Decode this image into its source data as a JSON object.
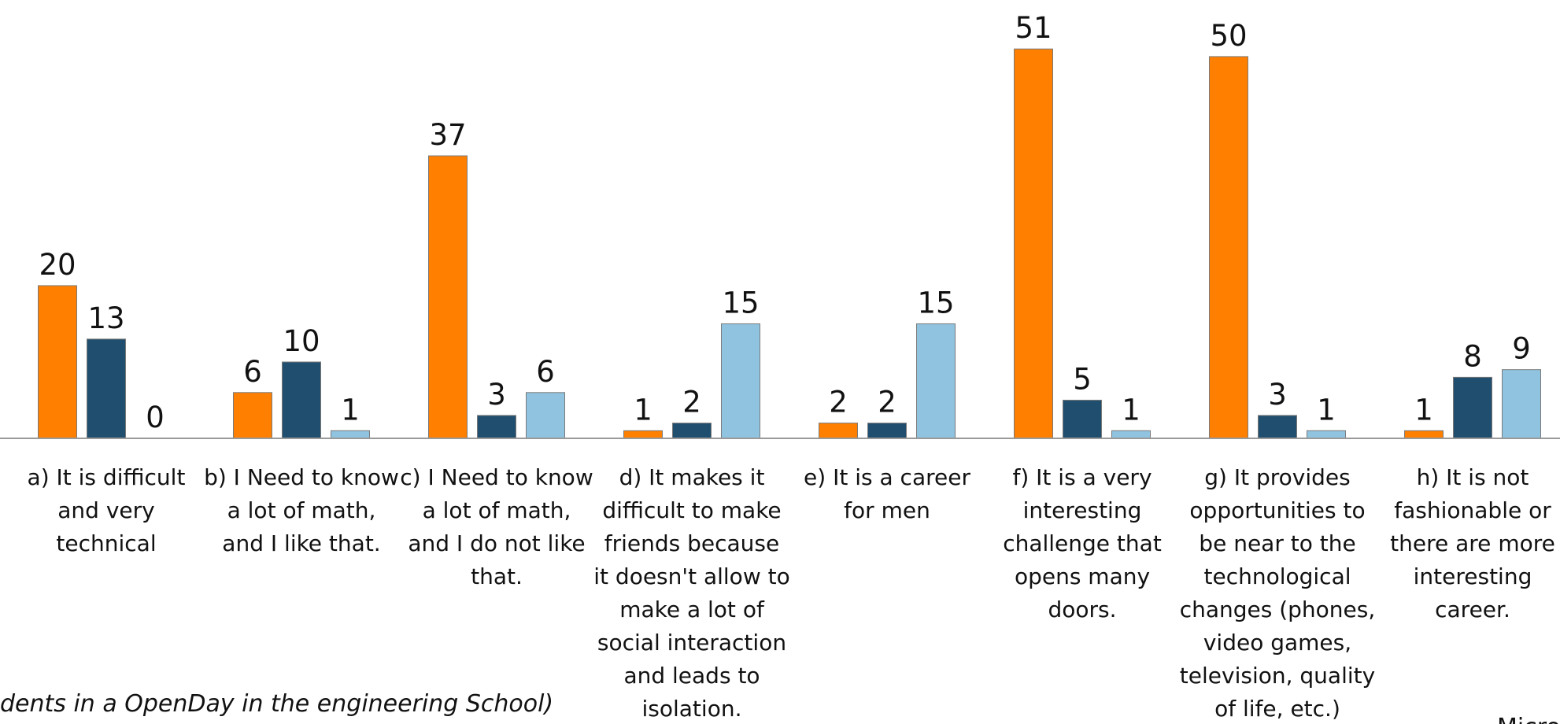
{
  "chart_data": {
    "type": "bar",
    "categories": [
      "a) It is difficult and very technical",
      "b) I Need to know a lot of math, and I like that.",
      "c) I Need to know a lot of math, and I do not like that.",
      "d) It makes it difficult to make friends because it doesn't allow to make a lot of social interaction and leads to isolation.",
      "e) It is a career for men",
      "f) It is a very interesting challenge that opens many doors.",
      "g) It provides opportunities to be near to the technological changes (phones, video games, television, quality of life, etc.)",
      "h) It is not fashionable or there are more interesting career."
    ],
    "series": [
      {
        "color": "#ff7f00",
        "values": [
          20,
          6,
          37,
          1,
          2,
          51,
          50,
          1
        ]
      },
      {
        "color": "#1f4e6e",
        "values": [
          13,
          10,
          3,
          2,
          2,
          5,
          3,
          8
        ]
      },
      {
        "color": "#8fc3e0",
        "values": [
          0,
          1,
          6,
          15,
          15,
          1,
          1,
          9
        ]
      }
    ],
    "ylim": [
      0,
      57
    ],
    "footnote": "dents in a OpenDay in the engineering School)",
    "corner_text": "Micro"
  }
}
